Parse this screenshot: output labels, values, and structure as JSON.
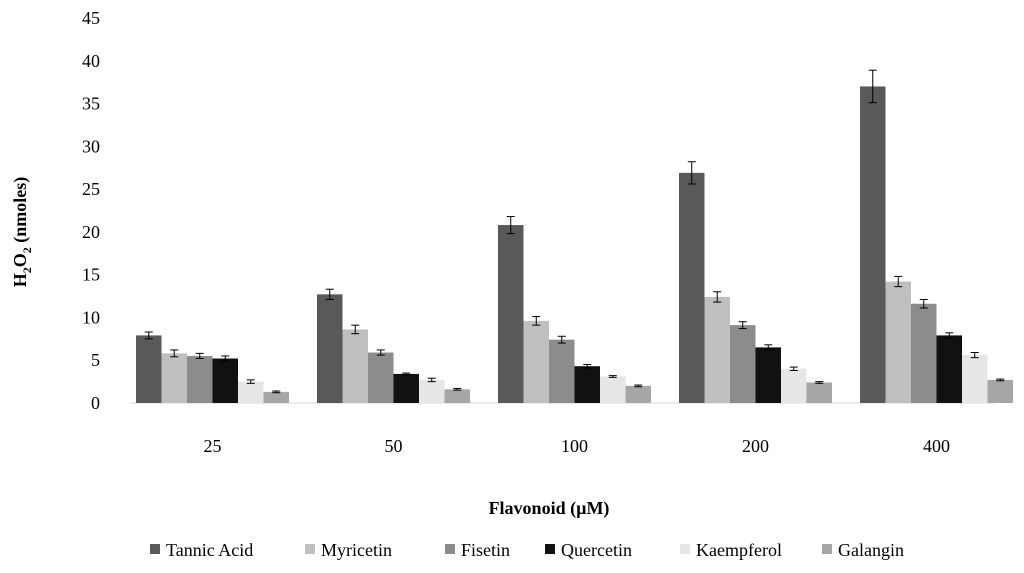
{
  "chart_data": {
    "type": "bar",
    "categories": [
      "25",
      "50",
      "100",
      "200",
      "400"
    ],
    "xlabel": "Flavonoid (µM)",
    "ylabel": "H2O2 (nmoles)",
    "ylabel_parts": {
      "main": "H",
      "sub1": "2",
      "mid": "O",
      "sub2": "2",
      "rest": " (nmoles)"
    },
    "ylim": [
      0,
      45
    ],
    "yticks": [
      0,
      5,
      10,
      15,
      20,
      25,
      30,
      35,
      40,
      45
    ],
    "grid": false,
    "legend_position": "bottom",
    "series": [
      {
        "name": "Tannic Acid",
        "color": "#595959",
        "values": [
          7.9,
          12.7,
          20.8,
          26.9,
          37.0
        ],
        "errors": [
          0.4,
          0.6,
          1.0,
          1.3,
          1.9
        ]
      },
      {
        "name": "Myricetin",
        "color": "#bfbfbf",
        "values": [
          5.8,
          8.6,
          9.6,
          12.4,
          14.2
        ],
        "errors": [
          0.4,
          0.5,
          0.5,
          0.6,
          0.6
        ]
      },
      {
        "name": "Fisetin",
        "color": "#8c8c8c",
        "values": [
          5.5,
          5.9,
          7.4,
          9.1,
          11.6
        ],
        "errors": [
          0.3,
          0.3,
          0.4,
          0.4,
          0.5
        ]
      },
      {
        "name": "Quercetin",
        "color": "#111111",
        "values": [
          5.2,
          3.4,
          4.3,
          6.5,
          7.9
        ],
        "errors": [
          0.3,
          0.1,
          0.2,
          0.3,
          0.3
        ]
      },
      {
        "name": "Kaempferol",
        "color": "#e6e6e6",
        "values": [
          2.5,
          2.7,
          3.1,
          4.0,
          5.6
        ],
        "errors": [
          0.2,
          0.2,
          0.1,
          0.2,
          0.3
        ]
      },
      {
        "name": "Galangin",
        "color": "#a6a6a6",
        "values": [
          1.3,
          1.6,
          2.0,
          2.4,
          2.7
        ],
        "errors": [
          0.1,
          0.1,
          0.1,
          0.1,
          0.1
        ]
      }
    ]
  }
}
